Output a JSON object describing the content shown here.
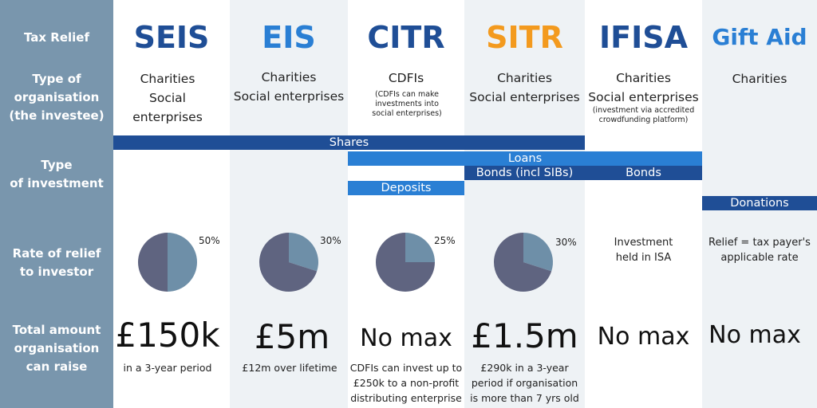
{
  "row_labels": {
    "tax_relief": "Tax Relief",
    "org_type": [
      "Type of",
      "organisation",
      "(the investee)"
    ],
    "investment_type": [
      "Type",
      "of investment"
    ],
    "rate": [
      "Rate of relief",
      "to investor"
    ],
    "total": [
      "Total amount",
      "organisation",
      "can raise"
    ]
  },
  "schemes": [
    {
      "name": "SEIS",
      "color": "#1f4e96",
      "org": [
        "Charities",
        "Social enterprises"
      ],
      "org_note": "",
      "rate_label": "50%",
      "max": "£150k",
      "max_note": [
        "in a 3-year period"
      ]
    },
    {
      "name": "EIS",
      "color": "#2a7fd4",
      "org": [
        "Charities",
        "Social enterprises"
      ],
      "org_note": "",
      "rate_label": "30%",
      "max": "£5m",
      "max_note": [
        "£12m over lifetime"
      ]
    },
    {
      "name": "CITR",
      "color": "#1f4e96",
      "org": [
        "CDFIs"
      ],
      "org_note": "(CDFIs can make investments into social enterprises)",
      "rate_label": "25%",
      "max": "No max",
      "max_note": [
        "CDFIs can invest up to",
        "£250k to a non-profit",
        "distributing enterprise"
      ]
    },
    {
      "name": "SITR",
      "color": "#f39a1e",
      "org": [
        "Charities",
        "Social enterprises"
      ],
      "org_note": "",
      "rate_label": "30%",
      "max": "£1.5m",
      "max_note": [
        "£290k in a 3-year",
        "period if organisation",
        "is more than 7 yrs old"
      ]
    },
    {
      "name": "IFISA",
      "color": "#1f4e96",
      "org": [
        "Charities",
        "Social enterprises"
      ],
      "org_note": "(investment via accredited crowdfunding platform)",
      "rate_text": [
        "Investment",
        "held in ISA"
      ],
      "max": "No max",
      "max_note": []
    },
    {
      "name": "Gift Aid",
      "color": "#2a7fd4",
      "org": [
        "Charities"
      ],
      "org_note": "",
      "rate_text": [
        "Relief = tax payer's",
        "applicable rate"
      ],
      "max": "No max",
      "max_note": []
    }
  ],
  "investment_bars": [
    {
      "label": "Shares",
      "color": "#1f4e96"
    },
    {
      "label": "Loans",
      "color": "#2a7fd4"
    },
    {
      "label": "Bonds (incl SIBs)",
      "color": "#1f4e96"
    },
    {
      "label": "Bonds",
      "color": "#1f4e96"
    },
    {
      "label": "Deposits",
      "color": "#2a7fd4"
    },
    {
      "label": "Donations",
      "color": "#1f4e96"
    }
  ],
  "chart_data": [
    {
      "type": "pie",
      "values": [
        50,
        50
      ],
      "colors": [
        "#6e8fa8",
        "#5f6480"
      ]
    },
    {
      "type": "pie",
      "values": [
        30,
        70
      ],
      "colors": [
        "#6e8fa8",
        "#5f6480"
      ]
    },
    {
      "type": "pie",
      "values": [
        25,
        75
      ],
      "colors": [
        "#6e8fa8",
        "#5f6480"
      ]
    },
    {
      "type": "pie",
      "values": [
        30,
        70
      ],
      "colors": [
        "#6e8fa8",
        "#5f6480"
      ]
    }
  ]
}
